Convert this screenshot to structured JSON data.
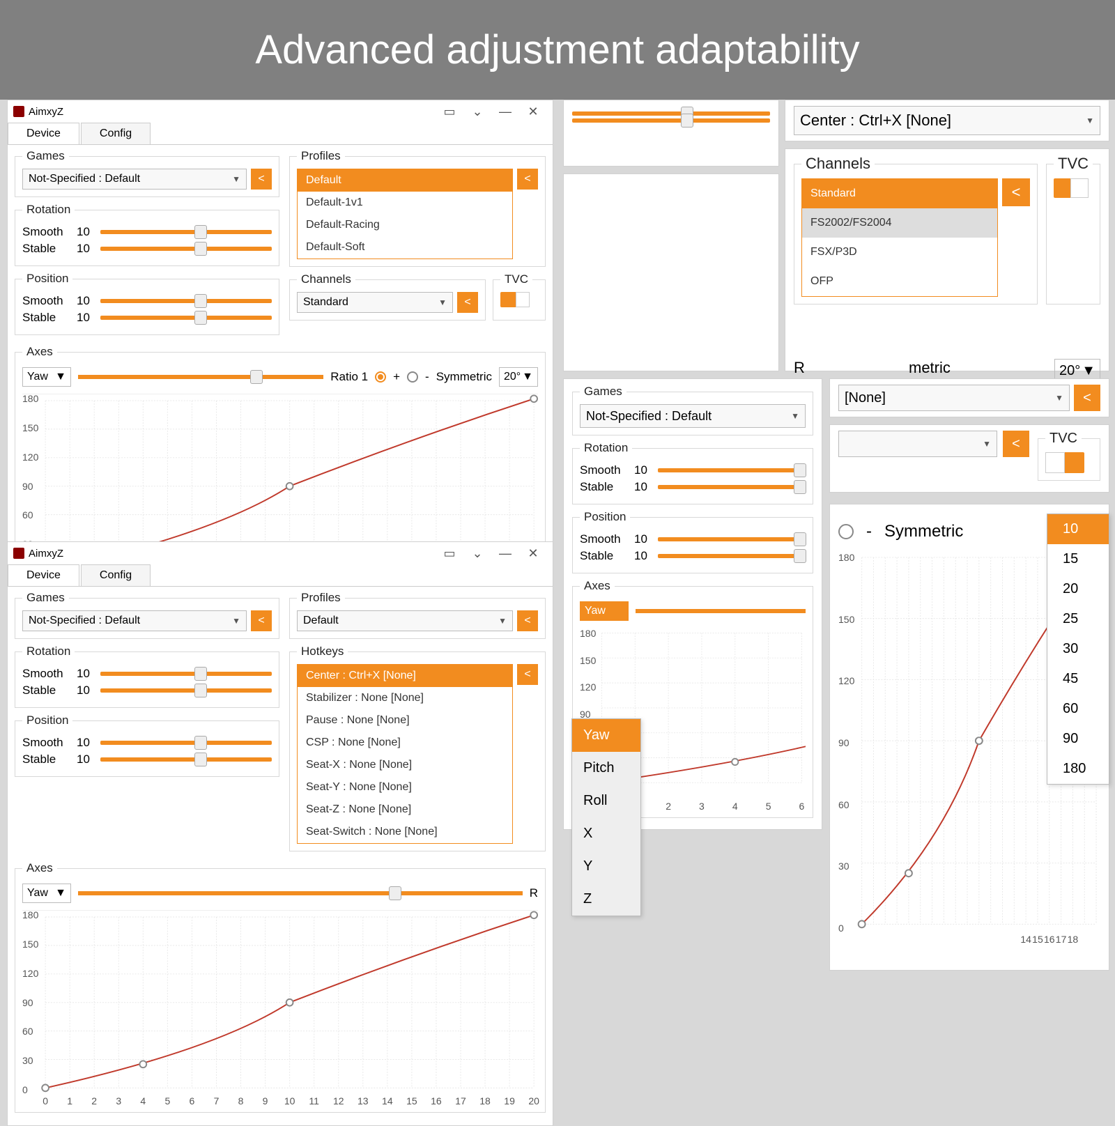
{
  "banner": "Advanced adjustment adaptability",
  "appTitle": "AimxyZ",
  "tabs": {
    "device": "Device",
    "config": "Config"
  },
  "games": {
    "legend": "Games",
    "value": "Not-Specified : Default"
  },
  "rotation": {
    "legend": "Rotation",
    "smooth_label": "Smooth",
    "smooth_val": "10",
    "stable_label": "Stable",
    "stable_val": "10"
  },
  "position": {
    "legend": "Position",
    "smooth_label": "Smooth",
    "smooth_val": "10",
    "stable_label": "Stable",
    "stable_val": "10"
  },
  "profiles": {
    "legend": "Profiles",
    "value": "Default",
    "items": [
      "Default",
      "Default-1v1",
      "Default-Racing",
      "Default-Soft"
    ]
  },
  "channels": {
    "legend": "Channels",
    "value": "Standard",
    "items": [
      "Standard",
      "FS2002/FS2004",
      "FSX/P3D",
      "OFP"
    ]
  },
  "tvc": {
    "legend": "TVC"
  },
  "axes": {
    "legend": "Axes",
    "selected": "Yaw",
    "ratio": "Ratio 1",
    "symmetric": "Symmetric",
    "deg": "20°",
    "items": [
      "Yaw",
      "Pitch",
      "Roll",
      "X",
      "Y",
      "Z"
    ]
  },
  "hotkeys": {
    "legend": "Hotkeys",
    "big_value": "Center : Ctrl+X [None]",
    "items": [
      "Center : Ctrl+X [None]",
      "Stabilizer : None [None]",
      "Pause : None [None]",
      "CSP : None [None]",
      "Seat-X : None [None]",
      "Seat-Y : None [None]",
      "Seat-Z : None [None]",
      "Seat-Switch : None [None]"
    ]
  },
  "none_value": "[None]",
  "sym_r": "R",
  "sym_metric": "metric",
  "sym_20": "20°",
  "sym_opts": [
    "10",
    "15",
    "20",
    "25",
    "30",
    "45",
    "60",
    "90",
    "180"
  ],
  "chart": {
    "yticks": [
      0,
      30,
      60,
      90,
      120,
      150,
      180
    ],
    "xticks": [
      0,
      1,
      2,
      3,
      4,
      5,
      6,
      7,
      8,
      9,
      10,
      11,
      12,
      13,
      14,
      15,
      16,
      17,
      18,
      19,
      20
    ],
    "xticks_short": [
      0,
      1,
      2,
      3,
      4,
      5,
      6
    ],
    "xticks_tail": [
      14,
      15,
      16,
      17,
      18
    ],
    "points": [
      [
        0,
        0
      ],
      [
        4,
        25
      ],
      [
        10,
        90
      ],
      [
        20,
        182
      ]
    ],
    "curve_color": "#c0392b"
  },
  "colors": {
    "accent": "#f28c1f",
    "banner": "#808080"
  }
}
